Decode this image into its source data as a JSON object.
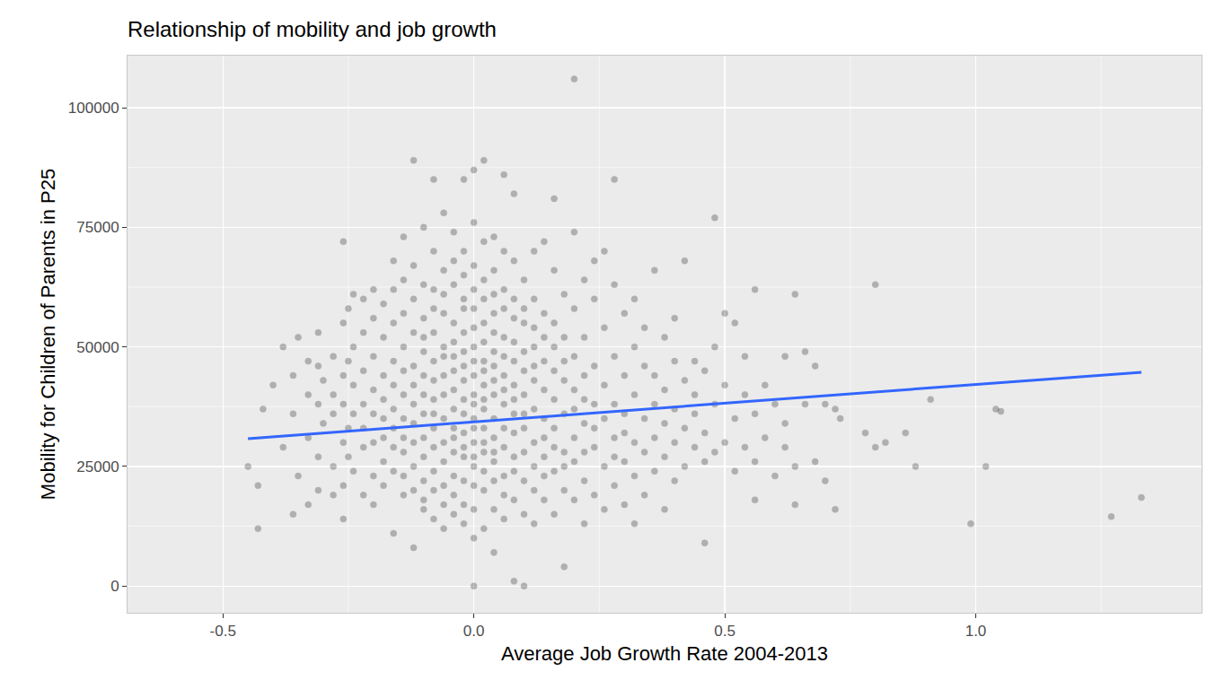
{
  "chart_data": {
    "type": "scatter",
    "title": "Relationship of mobility and job growth",
    "x_label": "Average Job Growth Rate 2004-2013",
    "y_label": "Mobility for Children of Parents in P25",
    "xlim": [
      -0.69,
      1.45
    ],
    "ylim": [
      -5600,
      110900
    ],
    "xticks": [
      -0.5,
      {
        "value": 0,
        "label": "0.0"
      },
      0.5,
      {
        "value": 1,
        "label": "1.0"
      }
    ],
    "yticks": [
      0,
      25000,
      50000,
      75000,
      100000
    ],
    "grid": true,
    "series": [
      {
        "type": "scatter",
        "color": "#000000",
        "marker": "circle",
        "x": [
          -0.45,
          -0.43,
          -0.43,
          -0.42,
          -0.4,
          -0.38,
          -0.38,
          -0.36,
          -0.36,
          -0.36,
          -0.35,
          -0.35,
          -0.33,
          -0.33,
          -0.33,
          -0.33,
          -0.31,
          -0.31,
          -0.31,
          -0.31,
          -0.31,
          -0.3,
          -0.3,
          -0.28,
          -0.28,
          -0.28,
          -0.28,
          -0.28,
          -0.26,
          -0.26,
          -0.26,
          -0.26,
          -0.26,
          -0.26,
          -0.26,
          -0.25,
          -0.25,
          -0.25,
          -0.25,
          -0.24,
          -0.24,
          -0.24,
          -0.24,
          -0.24,
          -0.22,
          -0.22,
          -0.22,
          -0.22,
          -0.22,
          -0.22,
          -0.22,
          -0.2,
          -0.2,
          -0.2,
          -0.2,
          -0.2,
          -0.2,
          -0.2,
          -0.2,
          -0.18,
          -0.18,
          -0.18,
          -0.18,
          -0.18,
          -0.18,
          -0.18,
          -0.18,
          -0.16,
          -0.16,
          -0.16,
          -0.16,
          -0.16,
          -0.16,
          -0.16,
          -0.16,
          -0.16,
          -0.16,
          -0.14,
          -0.14,
          -0.14,
          -0.14,
          -0.14,
          -0.14,
          -0.14,
          -0.14,
          -0.14,
          -0.14,
          -0.14,
          -0.12,
          -0.12,
          -0.12,
          -0.12,
          -0.12,
          -0.12,
          -0.12,
          -0.12,
          -0.12,
          -0.12,
          -0.12,
          -0.12,
          -0.1,
          -0.1,
          -0.1,
          -0.1,
          -0.1,
          -0.1,
          -0.1,
          -0.1,
          -0.1,
          -0.1,
          -0.1,
          -0.1,
          -0.1,
          -0.08,
          -0.08,
          -0.08,
          -0.08,
          -0.08,
          -0.08,
          -0.08,
          -0.08,
          -0.08,
          -0.08,
          -0.08,
          -0.08,
          -0.08,
          -0.08,
          -0.06,
          -0.06,
          -0.06,
          -0.06,
          -0.06,
          -0.06,
          -0.06,
          -0.06,
          -0.06,
          -0.06,
          -0.06,
          -0.06,
          -0.06,
          -0.06,
          -0.04,
          -0.04,
          -0.04,
          -0.04,
          -0.04,
          -0.04,
          -0.04,
          -0.04,
          -0.04,
          -0.04,
          -0.04,
          -0.04,
          -0.04,
          -0.04,
          -0.04,
          -0.02,
          -0.02,
          -0.02,
          -0.02,
          -0.02,
          -0.02,
          -0.02,
          -0.02,
          -0.02,
          -0.02,
          -0.02,
          -0.02,
          -0.02,
          -0.02,
          -0.02,
          -0.02,
          -0.02,
          0.0,
          0.0,
          0.0,
          0.0,
          0.0,
          0.0,
          0.0,
          0.0,
          0.0,
          0.0,
          0.0,
          0.0,
          0.0,
          0.0,
          0.0,
          0.0,
          0.0,
          0.0,
          0.0,
          0.0,
          0.02,
          0.02,
          0.02,
          0.02,
          0.02,
          0.02,
          0.02,
          0.02,
          0.02,
          0.02,
          0.02,
          0.02,
          0.02,
          0.02,
          0.02,
          0.02,
          0.02,
          0.04,
          0.04,
          0.04,
          0.04,
          0.04,
          0.04,
          0.04,
          0.04,
          0.04,
          0.04,
          0.04,
          0.04,
          0.04,
          0.04,
          0.04,
          0.04,
          0.06,
          0.06,
          0.06,
          0.06,
          0.06,
          0.06,
          0.06,
          0.06,
          0.06,
          0.06,
          0.06,
          0.06,
          0.06,
          0.06,
          0.08,
          0.08,
          0.08,
          0.08,
          0.08,
          0.08,
          0.08,
          0.08,
          0.08,
          0.08,
          0.08,
          0.08,
          0.08,
          0.08,
          0.1,
          0.1,
          0.1,
          0.1,
          0.1,
          0.1,
          0.1,
          0.1,
          0.1,
          0.1,
          0.1,
          0.1,
          0.12,
          0.12,
          0.12,
          0.12,
          0.12,
          0.12,
          0.12,
          0.12,
          0.12,
          0.12,
          0.12,
          0.14,
          0.14,
          0.14,
          0.14,
          0.14,
          0.14,
          0.14,
          0.14,
          0.14,
          0.14,
          0.16,
          0.16,
          0.16,
          0.16,
          0.16,
          0.16,
          0.16,
          0.16,
          0.16,
          0.16,
          0.18,
          0.18,
          0.18,
          0.18,
          0.18,
          0.18,
          0.18,
          0.18,
          0.18,
          0.2,
          0.2,
          0.2,
          0.2,
          0.2,
          0.2,
          0.2,
          0.2,
          0.2,
          0.22,
          0.22,
          0.22,
          0.22,
          0.22,
          0.22,
          0.22,
          0.22,
          0.24,
          0.24,
          0.24,
          0.24,
          0.24,
          0.24,
          0.24,
          0.26,
          0.26,
          0.26,
          0.26,
          0.26,
          0.26,
          0.28,
          0.28,
          0.28,
          0.28,
          0.28,
          0.28,
          0.28,
          0.3,
          0.3,
          0.3,
          0.3,
          0.3,
          0.3,
          0.32,
          0.32,
          0.32,
          0.32,
          0.32,
          0.32,
          0.34,
          0.34,
          0.34,
          0.34,
          0.34,
          0.36,
          0.36,
          0.36,
          0.36,
          0.36,
          0.38,
          0.38,
          0.38,
          0.38,
          0.38,
          0.4,
          0.4,
          0.4,
          0.4,
          0.4,
          0.42,
          0.42,
          0.42,
          0.42,
          0.44,
          0.44,
          0.44,
          0.44,
          0.46,
          0.46,
          0.46,
          0.46,
          0.48,
          0.48,
          0.48,
          0.48,
          0.5,
          0.5,
          0.5,
          0.52,
          0.52,
          0.52,
          0.54,
          0.54,
          0.54,
          0.56,
          0.56,
          0.56,
          0.56,
          0.58,
          0.58,
          0.6,
          0.6,
          0.62,
          0.62,
          0.62,
          0.64,
          0.64,
          0.64,
          0.66,
          0.66,
          0.68,
          0.68,
          0.7,
          0.7,
          0.72,
          0.72,
          0.73,
          0.78,
          0.8,
          0.8,
          0.82,
          0.86,
          0.88,
          0.91,
          0.99,
          1.02,
          1.04,
          1.05,
          1.27,
          1.33
        ],
        "values": [
          25000,
          21000,
          12000,
          37000,
          42000,
          50000,
          29000,
          44000,
          36000,
          15000,
          23000,
          52000,
          40000,
          47000,
          31000,
          17000,
          27000,
          46000,
          38000,
          20000,
          53000,
          34000,
          43000,
          48000,
          25000,
          36000,
          19000,
          40000,
          72000,
          30000,
          44000,
          21000,
          55000,
          38000,
          14000,
          58000,
          33000,
          47000,
          27000,
          61000,
          24000,
          42000,
          36000,
          50000,
          60000,
          19000,
          29000,
          45000,
          38000,
          53000,
          33000,
          56000,
          23000,
          48000,
          41000,
          30000,
          36000,
          17000,
          62000,
          26000,
          44000,
          52000,
          35000,
          59000,
          21000,
          39000,
          31000,
          68000,
          11000,
          29000,
          47000,
          55000,
          37000,
          24000,
          42000,
          33000,
          62000,
          73000,
          19000,
          50000,
          28000,
          40000,
          57000,
          35000,
          45000,
          23000,
          31000,
          64000,
          89000,
          8000,
          25000,
          53000,
          38000,
          46000,
          30000,
          60000,
          20000,
          42000,
          34000,
          67000,
          75000,
          16000,
          49000,
          27000,
          56000,
          36000,
          44000,
          22000,
          31000,
          63000,
          40000,
          52000,
          18000,
          85000,
          14000,
          58000,
          24000,
          47000,
          33000,
          39000,
          70000,
          29000,
          53000,
          43000,
          20000,
          36000,
          62000,
          78000,
          12000,
          66000,
          26000,
          50000,
          35000,
          44000,
          57000,
          21000,
          30000,
          40000,
          61000,
          48000,
          17000,
          74000,
          15000,
          55000,
          28000,
          45000,
          37000,
          63000,
          23000,
          33000,
          51000,
          41000,
          68000,
          19000,
          31000,
          48000,
          85000,
          70000,
          13000,
          58000,
          27000,
          49000,
          36000,
          43000,
          65000,
          22000,
          32000,
          53000,
          39000,
          17000,
          46000,
          29000,
          60000,
          87000,
          0,
          76000,
          10000,
          67000,
          16000,
          58000,
          25000,
          50000,
          35000,
          44000,
          62000,
          21000,
          30000,
          40000,
          54000,
          47000,
          33000,
          27000,
          38000,
          89000,
          72000,
          12000,
          64000,
          20000,
          55000,
          28000,
          47000,
          37000,
          42000,
          60000,
          24000,
          33000,
          51000,
          39000,
          45000,
          30000,
          73000,
          7000,
          66000,
          16000,
          57000,
          26000,
          49000,
          35000,
          43000,
          61000,
          22000,
          31000,
          53000,
          40000,
          46000,
          28000,
          86000,
          70000,
          14000,
          62000,
          23000,
          52000,
          33000,
          44000,
          58000,
          19000,
          29000,
          48000,
          38000,
          41000,
          82000,
          1000,
          68000,
          18000,
          56000,
          27000,
          47000,
          36000,
          42000,
          60000,
          24000,
          32000,
          51000,
          39000,
          0,
          64000,
          15000,
          55000,
          22000,
          45000,
          33000,
          40000,
          58000,
          28000,
          49000,
          36000,
          70000,
          13000,
          60000,
          25000,
          50000,
          30000,
          43000,
          37000,
          54000,
          20000,
          46000,
          72000,
          18000,
          57000,
          27000,
          47000,
          35000,
          41000,
          23000,
          52000,
          31000,
          81000,
          66000,
          15000,
          55000,
          24000,
          45000,
          33000,
          39000,
          50000,
          29000,
          4000,
          61000,
          20000,
          52000,
          28000,
          43000,
          36000,
          47000,
          25000,
          106000,
          74000,
          58000,
          18000,
          48000,
          31000,
          41000,
          26000,
          37000,
          64000,
          13000,
          52000,
          22000,
          44000,
          34000,
          39000,
          28000,
          68000,
          60000,
          19000,
          46000,
          29000,
          38000,
          33000,
          70000,
          16000,
          54000,
          25000,
          42000,
          35000,
          85000,
          63000,
          21000,
          48000,
          31000,
          38000,
          27000,
          57000,
          17000,
          44000,
          26000,
          36000,
          32000,
          60000,
          13000,
          50000,
          23000,
          40000,
          30000,
          46000,
          19000,
          35000,
          28000,
          54000,
          66000,
          44000,
          24000,
          38000,
          31000,
          52000,
          16000,
          41000,
          27000,
          34000,
          47000,
          22000,
          37000,
          30000,
          56000,
          68000,
          43000,
          25000,
          33000,
          40000,
          29000,
          47000,
          36000,
          9000,
          45000,
          26000,
          32000,
          77000,
          38000,
          28000,
          50000,
          57000,
          30000,
          42000,
          55000,
          35000,
          24000,
          40000,
          29000,
          48000,
          62000,
          36000,
          18000,
          26000,
          42000,
          31000,
          23000,
          38000,
          48000,
          29000,
          34000,
          61000,
          17000,
          25000,
          49000,
          38000,
          26000,
          46000,
          38000,
          22000,
          16000,
          37000,
          35000,
          32000,
          63000,
          29000,
          30000,
          32000,
          25000,
          39000,
          13000,
          25000,
          37000,
          36500,
          14500,
          18500
        ]
      },
      {
        "type": "line",
        "color": "#3366FF",
        "line_style": "solid",
        "x": [
          -0.45,
          1.33
        ],
        "values": [
          30800,
          44700
        ]
      }
    ]
  }
}
